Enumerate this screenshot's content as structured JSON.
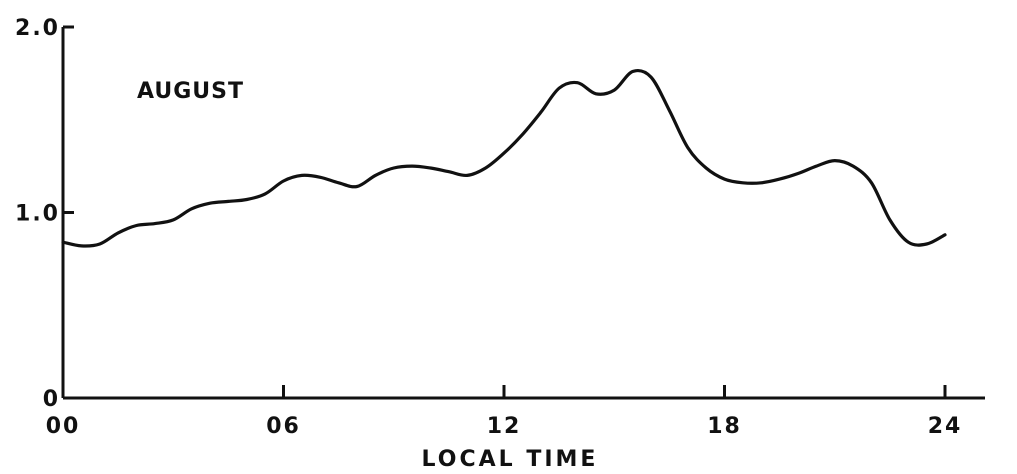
{
  "chart_data": {
    "type": "line",
    "title": "",
    "annotation": "AUGUST",
    "xlabel": "LOCAL TIME",
    "ylabel": "",
    "xlim": [
      0,
      24
    ],
    "ylim": [
      0,
      2.0
    ],
    "x_ticks": [
      0,
      6,
      12,
      18,
      24
    ],
    "x_tick_labels": [
      "00",
      "06",
      "12",
      "18",
      "24"
    ],
    "y_ticks": [
      0,
      1.0,
      2.0
    ],
    "y_tick_labels": [
      "0",
      "1.0",
      "2.0"
    ],
    "grid": false,
    "legend": "none",
    "line_color": "#111111",
    "series": [
      {
        "x": [
          0,
          0.5,
          1,
          1.5,
          2,
          2.5,
          3,
          3.5,
          4,
          4.5,
          5,
          5.5,
          6,
          6.5,
          7,
          7.5,
          8,
          8.5,
          9,
          9.5,
          10,
          10.5,
          11,
          11.5,
          12,
          12.5,
          13,
          13.5,
          14,
          14.5,
          15,
          15.5,
          16,
          16.5,
          17,
          17.5,
          18,
          18.5,
          19,
          19.5,
          20,
          20.5,
          21,
          21.5,
          22,
          22.5,
          23,
          23.5,
          24
        ],
        "values": [
          0.84,
          0.82,
          0.83,
          0.89,
          0.93,
          0.94,
          0.96,
          1.02,
          1.05,
          1.06,
          1.07,
          1.1,
          1.17,
          1.2,
          1.19,
          1.16,
          1.14,
          1.2,
          1.24,
          1.25,
          1.24,
          1.22,
          1.2,
          1.24,
          1.32,
          1.42,
          1.54,
          1.67,
          1.7,
          1.64,
          1.66,
          1.76,
          1.73,
          1.55,
          1.35,
          1.24,
          1.18,
          1.16,
          1.16,
          1.18,
          1.21,
          1.25,
          1.28,
          1.25,
          1.16,
          0.96,
          0.84,
          0.83,
          0.88
        ]
      }
    ]
  }
}
